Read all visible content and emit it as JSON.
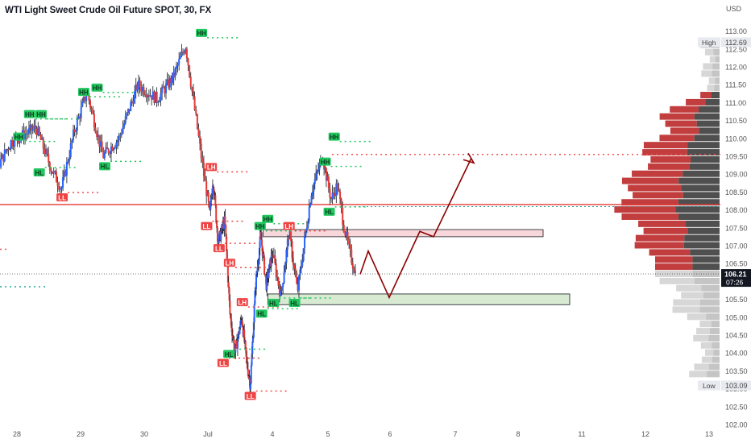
{
  "header": {
    "title": "WTI Light Sweet Crude Oil Future SPOT, 30, FX",
    "currency": "USD"
  },
  "colors": {
    "up": "#26a69a",
    "down": "#ef5350",
    "candle_up_body": "#2962ff",
    "candle_down_body": "#e53935",
    "wick": "#131722",
    "hh_label": "#22c55e",
    "ll_label": "#ef4444",
    "resistance_line": "#e53935",
    "projection": "#8b0000",
    "supply_zone": "#f8d7da",
    "demand_zone": "#d9ead3",
    "volume_profile_dark": "#3c3c3c",
    "volume_profile_red": "#b71c1c",
    "volume_profile_light": "#c9c9c9"
  },
  "chart_data": {
    "type": "candlestick",
    "x_ticks": [
      "28",
      "29",
      "30",
      "Jul",
      "4",
      "5",
      "6",
      "7",
      "8",
      "11",
      "12",
      "13"
    ],
    "y_ticks": [
      "113.00",
      "112.50",
      "112.00",
      "111.50",
      "111.00",
      "110.50",
      "110.00",
      "109.50",
      "109.00",
      "108.50",
      "108.00",
      "107.50",
      "107.00",
      "106.50",
      "106.00",
      "105.50",
      "105.00",
      "104.50",
      "104.00",
      "103.50",
      "103.00",
      "102.50",
      "102.00"
    ],
    "ylim": [
      102.0,
      113.3
    ],
    "price_markers": {
      "high": {
        "label": "High",
        "value": "112.69"
      },
      "last": {
        "value": "106.21",
        "countdown": "07:26"
      },
      "low": {
        "label": "Low",
        "value": "103.09"
      }
    },
    "swing_labels": [
      {
        "text": "HH",
        "date": 27.04,
        "price": 109.75
      },
      {
        "text": "HH",
        "date": 28.03,
        "price": 110.05
      },
      {
        "text": "HH",
        "date": 28.2,
        "price": 110.68
      },
      {
        "text": "HH",
        "date": 28.38,
        "price": 110.68
      },
      {
        "text": "HL",
        "date": 28.35,
        "price": 109.05
      },
      {
        "text": "LL",
        "date": 28.71,
        "price": 108.35
      },
      {
        "text": "HH",
        "date": 29.05,
        "price": 111.3
      },
      {
        "text": "HH",
        "date": 29.26,
        "price": 111.42
      },
      {
        "text": "HL",
        "date": 29.38,
        "price": 109.22
      },
      {
        "text": "HH",
        "date": 30.9,
        "price": 112.95
      },
      {
        "text": "LH",
        "date": 31.1,
        "price": 109.2
      },
      {
        "text": "LL",
        "date": 30.98,
        "price": 107.55
      },
      {
        "text": "LL",
        "date": 31.33,
        "price": 106.93
      },
      {
        "text": "LH",
        "date": 31.64,
        "price": 106.52
      },
      {
        "text": "LL",
        "date": 31.45,
        "price": 103.72
      },
      {
        "text": "HL",
        "date": 31.62,
        "price": 103.97
      },
      {
        "text": "LH",
        "date": 32.02,
        "price": 105.42
      },
      {
        "text": "LL",
        "date": 32.28,
        "price": 102.8
      },
      {
        "text": "HH",
        "date": 32.6,
        "price": 107.55
      },
      {
        "text": "HH",
        "date": 32.85,
        "price": 107.75
      },
      {
        "text": "LH",
        "date": 33.3,
        "price": 107.55
      },
      {
        "text": "HL",
        "date": 32.65,
        "price": 105.1
      },
      {
        "text": "HL",
        "date": 33.02,
        "price": 105.4
      },
      {
        "text": "HL",
        "date": 33.4,
        "price": 105.4
      },
      {
        "text": "HH",
        "date": 33.95,
        "price": 109.35
      },
      {
        "text": "HH",
        "date": 34.1,
        "price": 110.05
      },
      {
        "text": "HL",
        "date": 34.02,
        "price": 107.95
      }
    ],
    "resistance_level": 108.15,
    "supply_zone": {
      "from_date": 32.7,
      "to_date": 37.6,
      "low": 107.25,
      "high": 107.45
    },
    "demand_zone": {
      "from_date": 32.85,
      "to_date": 38.0,
      "low": 105.35,
      "high": 105.65
    },
    "target_level": 109.55,
    "projection_path": [
      [
        34.5,
        106.2
      ],
      [
        34.7,
        106.85
      ],
      [
        35.1,
        105.55
      ],
      [
        35.9,
        107.4
      ],
      [
        36.15,
        107.25
      ],
      [
        36.7,
        109.45
      ]
    ],
    "candles_summary": {
      "first_date": 27.0,
      "last_date": 34.4,
      "close": 106.21
    }
  }
}
